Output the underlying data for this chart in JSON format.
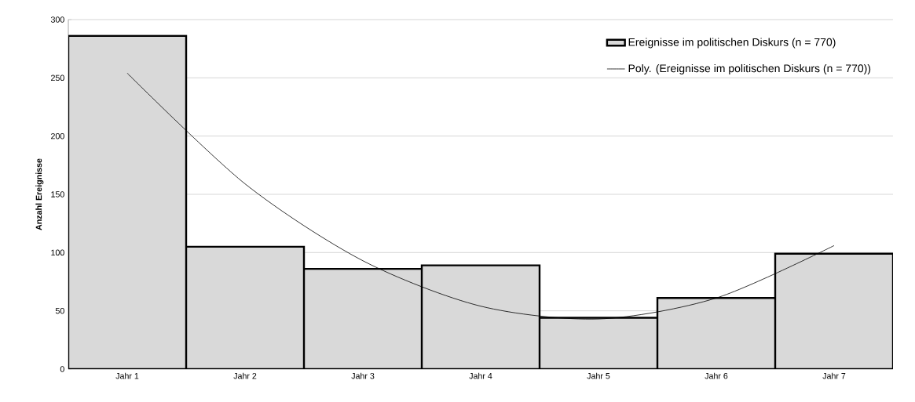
{
  "chart_data": {
    "type": "bar",
    "ylabel": "Anzahl Ereignisse",
    "categories": [
      "Jahr 1",
      "Jahr 2",
      "Jahr 3",
      "Jahr 4",
      "Jahr 5",
      "Jahr 6",
      "Jahr 7"
    ],
    "series": [
      {
        "name": "Ereignisse im politischen Diskurs (n = 770)",
        "color": "#d9d9d9",
        "values": [
          286,
          105,
          86,
          89,
          44,
          61,
          99
        ]
      },
      {
        "name": "Poly. (Ereignisse im politischen Diskurs (n = 770))",
        "type": "line",
        "color": "#000000",
        "values": [
          254,
          159,
          93,
          54,
          43,
          61,
          106
        ]
      }
    ],
    "ylim": [
      0,
      300
    ],
    "yticks": [
      0,
      50,
      100,
      150,
      200,
      250,
      300
    ],
    "grid": "y",
    "legend": "top right"
  }
}
